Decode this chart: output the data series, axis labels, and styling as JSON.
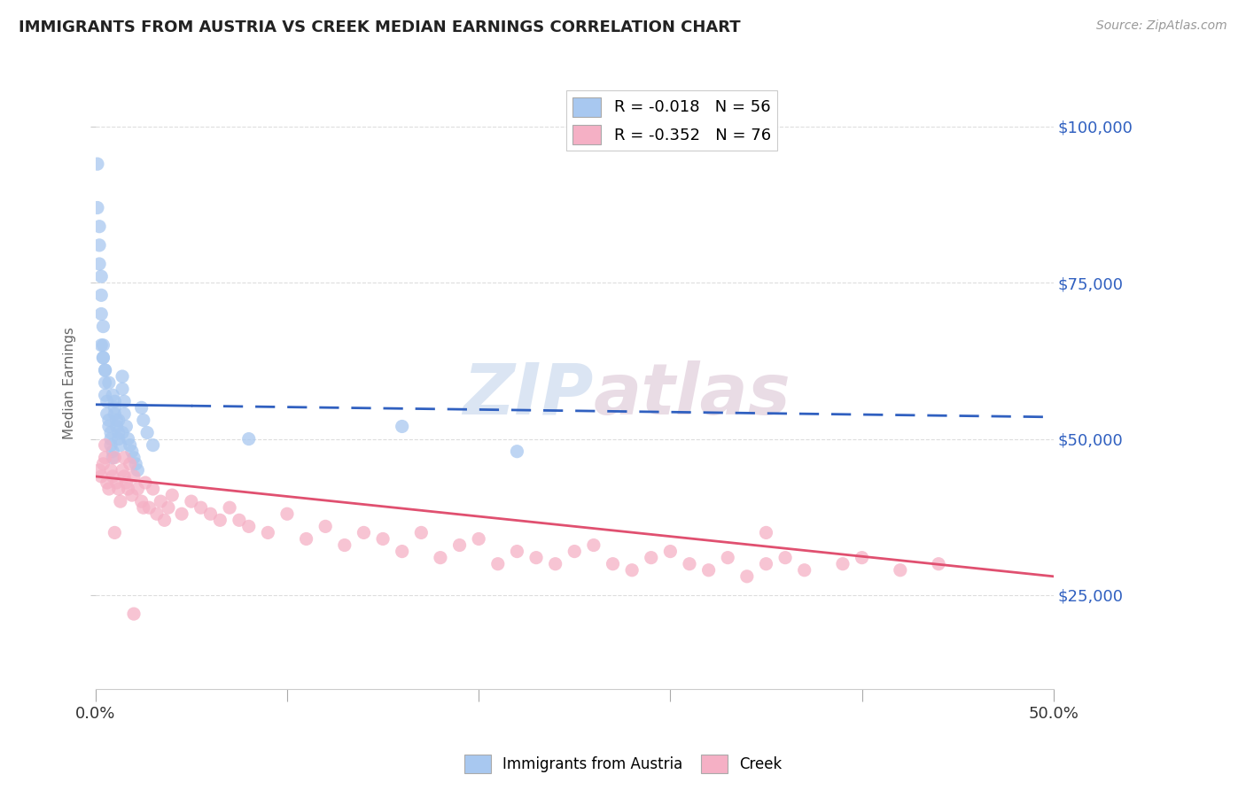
{
  "title": "IMMIGRANTS FROM AUSTRIA VS CREEK MEDIAN EARNINGS CORRELATION CHART",
  "source_text": "Source: ZipAtlas.com",
  "ylabel": "Median Earnings",
  "xmin": 0.0,
  "xmax": 0.5,
  "ymin": 10000,
  "ymax": 108000,
  "yticks": [
    25000,
    50000,
    75000,
    100000
  ],
  "ytick_labels": [
    "$25,000",
    "$50,000",
    "$75,000",
    "$100,000"
  ],
  "xticks": [
    0.0,
    0.1,
    0.2,
    0.3,
    0.4,
    0.5
  ],
  "xtick_labels": [
    "0.0%",
    "",
    "",
    "",
    "",
    "50.0%"
  ],
  "blue_R": -0.018,
  "blue_N": 56,
  "pink_R": -0.352,
  "pink_N": 76,
  "blue_color": "#a8c8f0",
  "pink_color": "#f5b0c5",
  "blue_line_color": "#3060c0",
  "pink_line_color": "#e05070",
  "legend_label_blue": "Immigrants from Austria",
  "legend_label_pink": "Creek",
  "watermark_zip": "ZIP",
  "watermark_atlas": "atlas",
  "background_color": "#ffffff",
  "blue_scatter_x": [
    0.001,
    0.001,
    0.002,
    0.002,
    0.002,
    0.003,
    0.003,
    0.003,
    0.004,
    0.004,
    0.004,
    0.005,
    0.005,
    0.005,
    0.006,
    0.006,
    0.007,
    0.007,
    0.008,
    0.008,
    0.008,
    0.009,
    0.009,
    0.01,
    0.01,
    0.011,
    0.011,
    0.012,
    0.012,
    0.013,
    0.014,
    0.014,
    0.015,
    0.015,
    0.016,
    0.017,
    0.018,
    0.019,
    0.02,
    0.021,
    0.022,
    0.024,
    0.025,
    0.027,
    0.03,
    0.003,
    0.004,
    0.005,
    0.007,
    0.009,
    0.01,
    0.012,
    0.014,
    0.08,
    0.16,
    0.22
  ],
  "blue_scatter_y": [
    94000,
    87000,
    84000,
    81000,
    78000,
    76000,
    73000,
    70000,
    68000,
    65000,
    63000,
    61000,
    59000,
    57000,
    56000,
    54000,
    53000,
    52000,
    51000,
    50000,
    49000,
    48000,
    47000,
    56000,
    54000,
    53000,
    52000,
    51000,
    50000,
    49000,
    60000,
    58000,
    56000,
    54000,
    52000,
    50000,
    49000,
    48000,
    47000,
    46000,
    45000,
    55000,
    53000,
    51000,
    49000,
    65000,
    63000,
    61000,
    59000,
    57000,
    55000,
    53000,
    51000,
    50000,
    52000,
    48000
  ],
  "pink_scatter_x": [
    0.002,
    0.003,
    0.004,
    0.005,
    0.006,
    0.007,
    0.008,
    0.009,
    0.01,
    0.011,
    0.012,
    0.013,
    0.014,
    0.015,
    0.016,
    0.017,
    0.018,
    0.019,
    0.02,
    0.022,
    0.024,
    0.026,
    0.028,
    0.03,
    0.032,
    0.034,
    0.036,
    0.038,
    0.04,
    0.045,
    0.05,
    0.055,
    0.06,
    0.065,
    0.07,
    0.075,
    0.08,
    0.09,
    0.1,
    0.11,
    0.12,
    0.13,
    0.14,
    0.15,
    0.16,
    0.17,
    0.18,
    0.19,
    0.2,
    0.21,
    0.22,
    0.23,
    0.24,
    0.25,
    0.26,
    0.27,
    0.28,
    0.29,
    0.3,
    0.31,
    0.32,
    0.33,
    0.34,
    0.35,
    0.36,
    0.37,
    0.39,
    0.4,
    0.42,
    0.44,
    0.005,
    0.01,
    0.015,
    0.02,
    0.025,
    0.35
  ],
  "pink_scatter_y": [
    45000,
    44000,
    46000,
    47000,
    43000,
    42000,
    45000,
    44000,
    47000,
    43000,
    42000,
    40000,
    45000,
    44000,
    43000,
    42000,
    46000,
    41000,
    44000,
    42000,
    40000,
    43000,
    39000,
    42000,
    38000,
    40000,
    37000,
    39000,
    41000,
    38000,
    40000,
    39000,
    38000,
    37000,
    39000,
    37000,
    36000,
    35000,
    38000,
    34000,
    36000,
    33000,
    35000,
    34000,
    32000,
    35000,
    31000,
    33000,
    34000,
    30000,
    32000,
    31000,
    30000,
    32000,
    33000,
    30000,
    29000,
    31000,
    32000,
    30000,
    29000,
    31000,
    28000,
    30000,
    31000,
    29000,
    30000,
    31000,
    29000,
    30000,
    49000,
    35000,
    47000,
    22000,
    39000,
    35000
  ],
  "blue_trendline_x": [
    0.0,
    0.5
  ],
  "blue_trendline_y": [
    55500,
    53500
  ],
  "pink_trendline_x": [
    0.0,
    0.5
  ],
  "pink_trendline_y": [
    44000,
    28000
  ]
}
